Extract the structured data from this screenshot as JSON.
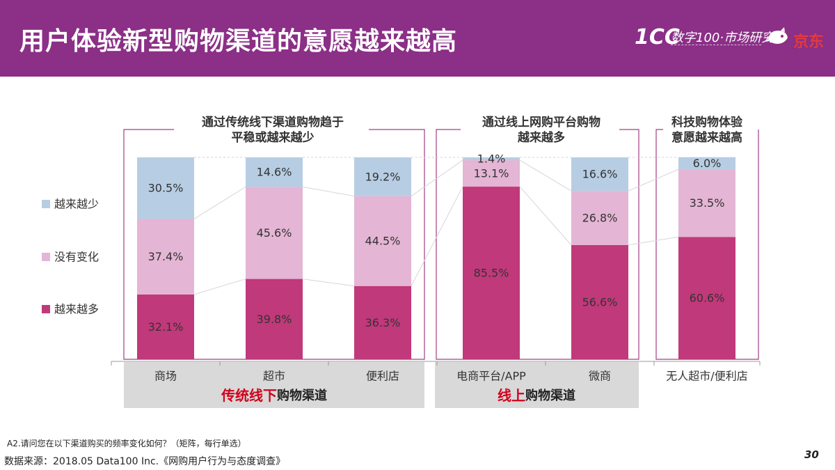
{
  "header": {
    "title": "用户体验新型购物渠道的意愿越来越高",
    "brand_mark": "1CC",
    "brand_text": "数字100·市场研究",
    "partner": "京东"
  },
  "groups": [
    {
      "heading_lines": [
        "通过传统线下渠道购物趋于",
        "平稳或越来越少"
      ]
    },
    {
      "heading_lines": [
        "通过线上网购平台购物",
        "越来越多"
      ]
    },
    {
      "heading_lines": [
        "科技购物体验",
        "意愿越来越高"
      ]
    }
  ],
  "channel_bands": [
    {
      "highlight": "传统线下",
      "rest": "购物渠道"
    },
    {
      "highlight": "线上",
      "rest": "购物渠道"
    }
  ],
  "colors": {
    "more": "#c0397a",
    "same": "#e4b5d4",
    "less": "#b7cde3",
    "frame": "#a23e86",
    "band": "#d9d9d9",
    "highlight": "#d0021b"
  },
  "chart_data": {
    "type": "bar",
    "stacked": true,
    "categories": [
      "商场",
      "超市",
      "便利店",
      "电商平台/APP",
      "微商",
      "无人超市/便利店"
    ],
    "series": [
      {
        "name": "越来越多",
        "values": [
          32.1,
          39.8,
          36.3,
          85.5,
          56.6,
          60.6
        ]
      },
      {
        "name": "没有变化",
        "values": [
          37.4,
          45.6,
          44.5,
          13.1,
          26.8,
          33.5
        ]
      },
      {
        "name": "越来越少",
        "values": [
          30.5,
          14.6,
          19.2,
          1.4,
          16.6,
          6.0
        ]
      }
    ],
    "data_labels": [
      [
        "32.1%",
        "39.8%",
        "36.3%",
        "85.5%",
        "56.6%",
        "60.6%"
      ],
      [
        "37.4%",
        "45.6%",
        "44.5%",
        "13.1%",
        "26.8%",
        "33.5%"
      ],
      [
        "30.5%",
        "14.6%",
        "19.2%",
        "1.4%",
        "16.6%",
        "6.0%"
      ]
    ],
    "ylim": [
      0,
      100
    ],
    "legend_position": "left",
    "grid": false
  },
  "footnote": "A2.请问您在以下渠道购买的频率变化如何？（矩阵，每行单选）",
  "source": "数据来源：2018.05 Data100 Inc.《网购用户行为与态度调查》",
  "page_number": "30"
}
